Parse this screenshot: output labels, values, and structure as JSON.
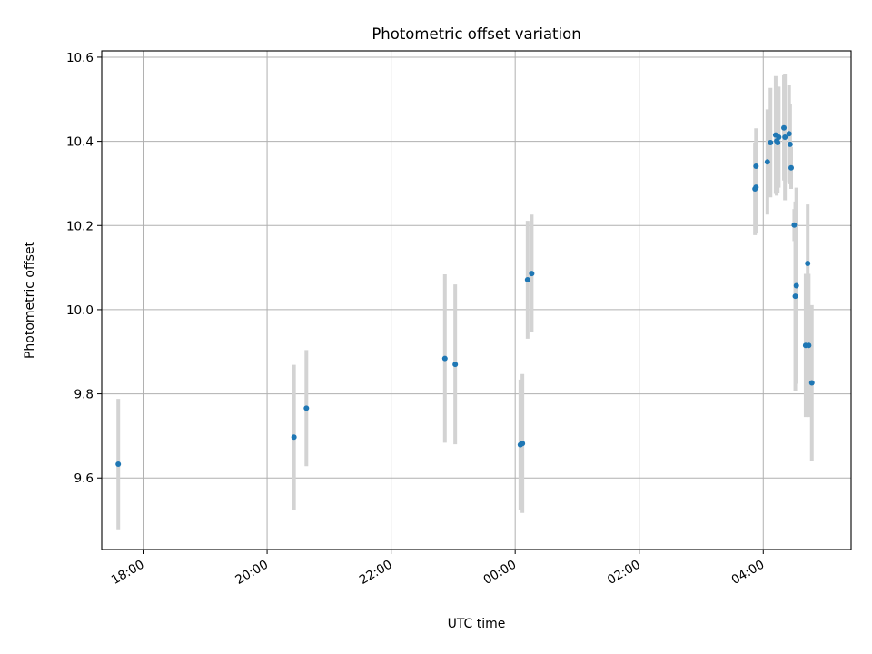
{
  "chart_data": {
    "type": "scatter",
    "title": "Photometric offset variation",
    "xlabel": "UTC time",
    "ylabel": "Photometric offset",
    "grid": true,
    "x_axis": "datetime",
    "xlim": [
      "17:20",
      "05:25"
    ],
    "ylim": [
      9.43,
      10.615
    ],
    "x_ticks": [
      "18:00",
      "20:00",
      "22:00",
      "00:00",
      "02:00",
      "04:00"
    ],
    "y_ticks": [
      "9.6",
      "9.8",
      "10.0",
      "10.2",
      "10.4",
      "10.6"
    ],
    "colors": {
      "point": "#1f77b4",
      "errorbar": "#d3d3d3",
      "grid": "#b0b0b0"
    },
    "series": [
      {
        "points": [
          {
            "x": "17:36",
            "y": 9.633,
            "yerr": 0.155
          },
          {
            "x": "20:26",
            "y": 9.697,
            "yerr": 0.172
          },
          {
            "x": "20:38",
            "y": 9.766,
            "yerr": 0.138
          },
          {
            "x": "22:52",
            "y": 9.884,
            "yerr": 0.2
          },
          {
            "x": "23:02",
            "y": 9.87,
            "yerr": 0.19
          },
          {
            "x": "00:05",
            "y": 9.679,
            "yerr": 0.155
          },
          {
            "x": "00:07",
            "y": 9.682,
            "yerr": 0.165
          },
          {
            "x": "00:12",
            "y": 10.071,
            "yerr": 0.14
          },
          {
            "x": "00:16",
            "y": 10.086,
            "yerr": 0.14
          },
          {
            "x": "03:52",
            "y": 10.287,
            "yerr": 0.11
          },
          {
            "x": "03:53",
            "y": 10.341,
            "yerr": 0.09
          },
          {
            "x": "03:53",
            "y": 10.291,
            "yerr": 0.11
          },
          {
            "x": "04:04",
            "y": 10.351,
            "yerr": 0.125
          },
          {
            "x": "04:07",
            "y": 10.397,
            "yerr": 0.13
          },
          {
            "x": "04:12",
            "y": 10.415,
            "yerr": 0.14
          },
          {
            "x": "04:13",
            "y": 10.401,
            "yerr": 0.13
          },
          {
            "x": "04:14",
            "y": 10.397,
            "yerr": 0.12
          },
          {
            "x": "04:15",
            "y": 10.41,
            "yerr": 0.12
          },
          {
            "x": "04:20",
            "y": 10.432,
            "yerr": 0.125
          },
          {
            "x": "04:21",
            "y": 10.41,
            "yerr": 0.15
          },
          {
            "x": "04:25",
            "y": 10.418,
            "yerr": 0.115
          },
          {
            "x": "04:26",
            "y": 10.393,
            "yerr": 0.095
          },
          {
            "x": "04:27",
            "y": 10.337,
            "yerr": 0.05
          },
          {
            "x": "04:30",
            "y": 10.201,
            "yerr": 0.038
          },
          {
            "x": "04:31",
            "y": 10.032,
            "yerr": 0.225
          },
          {
            "x": "04:32",
            "y": 10.057,
            "yerr": 0.233
          },
          {
            "x": "04:41",
            "y": 9.915,
            "yerr": 0.17
          },
          {
            "x": "04:43",
            "y": 10.11,
            "yerr": 0.14
          },
          {
            "x": "04:44",
            "y": 9.915,
            "yerr": 0.17
          },
          {
            "x": "04:47",
            "y": 9.826,
            "yerr": 0.185
          }
        ]
      }
    ]
  }
}
